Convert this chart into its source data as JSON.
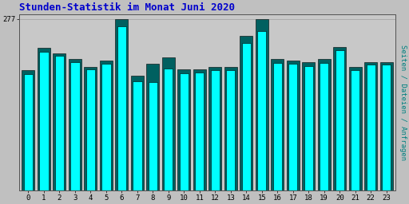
{
  "title": "Stunden-Statistik im Monat Juni 2020",
  "title_color": "#0000CC",
  "title_fontsize": 9,
  "ylabel_right": "Seiten / Dateien / Anfragen",
  "background_color": "#C0C0C0",
  "plot_bg_color": "#C8C8C8",
  "bar_color_cyan": "#00FFFF",
  "bar_color_teal": "#006060",
  "bar_edge_color": "#000000",
  "categories": [
    0,
    1,
    2,
    3,
    4,
    5,
    6,
    7,
    8,
    9,
    10,
    11,
    12,
    13,
    14,
    15,
    16,
    17,
    18,
    19,
    20,
    21,
    22,
    23
  ],
  "values_teal": [
    195,
    230,
    222,
    212,
    200,
    210,
    277,
    185,
    205,
    215,
    196,
    196,
    200,
    200,
    250,
    277,
    212,
    210,
    207,
    213,
    232,
    200,
    207,
    208
  ],
  "values_cyan": [
    188,
    224,
    218,
    207,
    196,
    205,
    265,
    177,
    175,
    197,
    190,
    191,
    194,
    194,
    238,
    258,
    206,
    205,
    201,
    206,
    227,
    195,
    203,
    204
  ],
  "ylim_min": 150,
  "ylim_max": 285,
  "ytick_val": 277,
  "grid_color": "#AAAAAA"
}
